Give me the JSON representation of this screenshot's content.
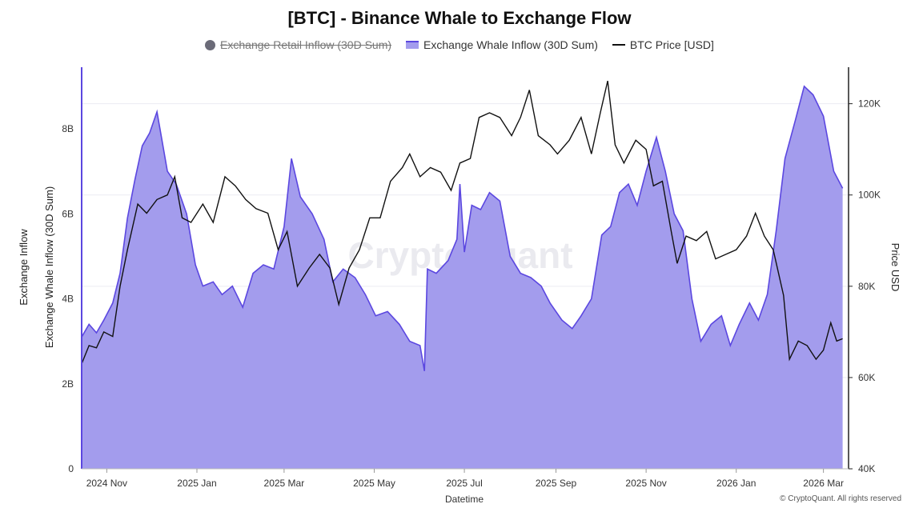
{
  "chart_data": {
    "type": "area",
    "title": "[BTC] - Binance Whale to Exchange Flow",
    "legend": [
      {
        "name": "Exchange Retail Inflow (30D Sum)",
        "color": "#6b6b78",
        "visible": false
      },
      {
        "name": "Exchange Whale Inflow (30D Sum)",
        "color": "#5b47e0",
        "fill": "#a39ced",
        "visible": true
      },
      {
        "name": "BTC Price [USD]",
        "color": "#111111",
        "visible": true
      }
    ],
    "xlabel": "Datetime",
    "ylabel_left_outer": "Exchange Inflow",
    "ylabel_left_inner": "Exchange Whale Inflow (30D Sum)",
    "ylabel_right": "Price USD",
    "x_ticks": [
      "2024 Nov",
      "2025 Jan",
      "2025 Mar",
      "2025 May",
      "2025 Jul",
      "2025 Sep",
      "2025 Nov",
      "2026 Jan",
      "2026 Mar"
    ],
    "y_left_ticks": [
      "0",
      "2B",
      "4B",
      "6B",
      "8B"
    ],
    "y_left_lim": [
      0,
      9.45
    ],
    "y_right_ticks": [
      "40K",
      "60K",
      "80K",
      "100K",
      "120K"
    ],
    "y_right_lim": [
      40000,
      128000
    ],
    "xlim": [
      "2024-10-15",
      "2026-03-18"
    ],
    "grid": true,
    "legend_position": "top-center",
    "watermark": "CryptoQuant",
    "series": [
      {
        "name": "Exchange Whale Inflow (30D Sum)",
        "unit": "B",
        "points": [
          [
            "2024-10-15",
            3.1
          ],
          [
            "2024-10-20",
            3.4
          ],
          [
            "2024-10-25",
            3.2
          ],
          [
            "2024-10-30",
            3.5
          ],
          [
            "2024-11-05",
            3.9
          ],
          [
            "2024-11-10",
            4.6
          ],
          [
            "2024-11-15",
            5.9
          ],
          [
            "2024-11-20",
            6.8
          ],
          [
            "2024-11-25",
            7.6
          ],
          [
            "2024-11-30",
            7.9
          ],
          [
            "2024-12-05",
            8.4
          ],
          [
            "2024-12-08",
            7.8
          ],
          [
            "2024-12-12",
            7.0
          ],
          [
            "2024-12-18",
            6.7
          ],
          [
            "2024-12-25",
            6.0
          ],
          [
            "2024-12-31",
            4.8
          ],
          [
            "2025-01-05",
            4.3
          ],
          [
            "2025-01-12",
            4.4
          ],
          [
            "2025-01-18",
            4.1
          ],
          [
            "2025-01-25",
            4.3
          ],
          [
            "2025-02-01",
            3.8
          ],
          [
            "2025-02-08",
            4.6
          ],
          [
            "2025-02-15",
            4.8
          ],
          [
            "2025-02-22",
            4.7
          ],
          [
            "2025-03-01",
            5.7
          ],
          [
            "2025-03-06",
            7.3
          ],
          [
            "2025-03-12",
            6.4
          ],
          [
            "2025-03-20",
            6.0
          ],
          [
            "2025-03-28",
            5.4
          ],
          [
            "2025-04-03",
            4.4
          ],
          [
            "2025-04-10",
            4.7
          ],
          [
            "2025-04-18",
            4.5
          ],
          [
            "2025-04-25",
            4.1
          ],
          [
            "2025-05-02",
            3.6
          ],
          [
            "2025-05-10",
            3.7
          ],
          [
            "2025-05-18",
            3.4
          ],
          [
            "2025-05-25",
            3.0
          ],
          [
            "2025-06-01",
            2.9
          ],
          [
            "2025-06-04",
            2.3
          ],
          [
            "2025-06-06",
            4.7
          ],
          [
            "2025-06-12",
            4.6
          ],
          [
            "2025-06-20",
            4.9
          ],
          [
            "2025-06-26",
            5.4
          ],
          [
            "2025-06-28",
            6.7
          ],
          [
            "2025-07-01",
            5.1
          ],
          [
            "2025-07-06",
            6.2
          ],
          [
            "2025-07-12",
            6.1
          ],
          [
            "2025-07-18",
            6.5
          ],
          [
            "2025-07-25",
            6.3
          ],
          [
            "2025-08-01",
            5.0
          ],
          [
            "2025-08-08",
            4.6
          ],
          [
            "2025-08-15",
            4.5
          ],
          [
            "2025-08-22",
            4.3
          ],
          [
            "2025-08-28",
            3.9
          ],
          [
            "2025-09-05",
            3.5
          ],
          [
            "2025-09-12",
            3.3
          ],
          [
            "2025-09-18",
            3.6
          ],
          [
            "2025-09-25",
            4.0
          ],
          [
            "2025-10-02",
            5.5
          ],
          [
            "2025-10-08",
            5.7
          ],
          [
            "2025-10-14",
            6.5
          ],
          [
            "2025-10-20",
            6.7
          ],
          [
            "2025-10-26",
            6.2
          ],
          [
            "2025-11-01",
            7.0
          ],
          [
            "2025-11-08",
            7.8
          ],
          [
            "2025-11-14",
            7.0
          ],
          [
            "2025-11-20",
            6.0
          ],
          [
            "2025-11-26",
            5.6
          ],
          [
            "2025-12-02",
            4.0
          ],
          [
            "2025-12-08",
            3.0
          ],
          [
            "2025-12-15",
            3.4
          ],
          [
            "2025-12-22",
            3.6
          ],
          [
            "2025-12-28",
            2.9
          ],
          [
            "2026-01-03",
            3.4
          ],
          [
            "2026-01-10",
            3.9
          ],
          [
            "2026-01-16",
            3.5
          ],
          [
            "2026-01-22",
            4.1
          ],
          [
            "2026-01-28",
            5.6
          ],
          [
            "2026-02-03",
            7.3
          ],
          [
            "2026-02-10",
            8.2
          ],
          [
            "2026-02-16",
            9.0
          ],
          [
            "2026-02-22",
            8.8
          ],
          [
            "2026-03-01",
            8.3
          ],
          [
            "2026-03-08",
            7.0
          ],
          [
            "2026-03-14",
            6.6
          ]
        ]
      },
      {
        "name": "BTC Price [USD]",
        "unit": "USD",
        "points": [
          [
            "2024-10-15",
            63000
          ],
          [
            "2024-10-20",
            67000
          ],
          [
            "2024-10-25",
            66500
          ],
          [
            "2024-10-30",
            70000
          ],
          [
            "2024-11-05",
            69000
          ],
          [
            "2024-11-10",
            80000
          ],
          [
            "2024-11-15",
            88000
          ],
          [
            "2024-11-22",
            98000
          ],
          [
            "2024-11-28",
            96000
          ],
          [
            "2024-12-05",
            99000
          ],
          [
            "2024-12-12",
            100000
          ],
          [
            "2024-12-17",
            104000
          ],
          [
            "2024-12-22",
            95000
          ],
          [
            "2024-12-28",
            94000
          ],
          [
            "2025-01-05",
            98000
          ],
          [
            "2025-01-12",
            94000
          ],
          [
            "2025-01-20",
            104000
          ],
          [
            "2025-01-27",
            102000
          ],
          [
            "2025-02-03",
            99000
          ],
          [
            "2025-02-10",
            97000
          ],
          [
            "2025-02-18",
            96000
          ],
          [
            "2025-02-25",
            88000
          ],
          [
            "2025-03-03",
            92000
          ],
          [
            "2025-03-10",
            80000
          ],
          [
            "2025-03-18",
            84000
          ],
          [
            "2025-03-25",
            87000
          ],
          [
            "2025-04-01",
            84000
          ],
          [
            "2025-04-07",
            76000
          ],
          [
            "2025-04-14",
            84000
          ],
          [
            "2025-04-21",
            88000
          ],
          [
            "2025-04-28",
            95000
          ],
          [
            "2025-05-05",
            95000
          ],
          [
            "2025-05-12",
            103000
          ],
          [
            "2025-05-20",
            106000
          ],
          [
            "2025-05-25",
            109000
          ],
          [
            "2025-06-01",
            104000
          ],
          [
            "2025-06-08",
            106000
          ],
          [
            "2025-06-15",
            105000
          ],
          [
            "2025-06-22",
            101000
          ],
          [
            "2025-06-28",
            107000
          ],
          [
            "2025-07-05",
            108000
          ],
          [
            "2025-07-11",
            117000
          ],
          [
            "2025-07-18",
            118000
          ],
          [
            "2025-07-25",
            117000
          ],
          [
            "2025-08-02",
            113000
          ],
          [
            "2025-08-08",
            117000
          ],
          [
            "2025-08-14",
            123000
          ],
          [
            "2025-08-20",
            113000
          ],
          [
            "2025-08-28",
            111000
          ],
          [
            "2025-09-02",
            109000
          ],
          [
            "2025-09-10",
            112000
          ],
          [
            "2025-09-18",
            117000
          ],
          [
            "2025-09-25",
            109000
          ],
          [
            "2025-10-01",
            118000
          ],
          [
            "2025-10-06",
            125000
          ],
          [
            "2025-10-11",
            111000
          ],
          [
            "2025-10-17",
            107000
          ],
          [
            "2025-10-25",
            112000
          ],
          [
            "2025-11-01",
            110000
          ],
          [
            "2025-11-06",
            102000
          ],
          [
            "2025-11-12",
            103000
          ],
          [
            "2025-11-18",
            92000
          ],
          [
            "2025-11-22",
            85000
          ],
          [
            "2025-11-28",
            91000
          ],
          [
            "2025-12-05",
            90000
          ],
          [
            "2025-12-12",
            92000
          ],
          [
            "2025-12-18",
            86000
          ],
          [
            "2025-12-25",
            87000
          ],
          [
            "2026-01-01",
            88000
          ],
          [
            "2026-01-08",
            91000
          ],
          [
            "2026-01-14",
            96000
          ],
          [
            "2026-01-20",
            91000
          ],
          [
            "2026-01-26",
            88000
          ],
          [
            "2026-02-02",
            78000
          ],
          [
            "2026-02-06",
            64000
          ],
          [
            "2026-02-12",
            68000
          ],
          [
            "2026-02-18",
            67000
          ],
          [
            "2026-02-24",
            64000
          ],
          [
            "2026-03-01",
            66000
          ],
          [
            "2026-03-06",
            72000
          ],
          [
            "2026-03-10",
            68000
          ],
          [
            "2026-03-14",
            68500
          ]
        ]
      }
    ]
  },
  "footer": "© CryptoQuant. All rights reserved"
}
